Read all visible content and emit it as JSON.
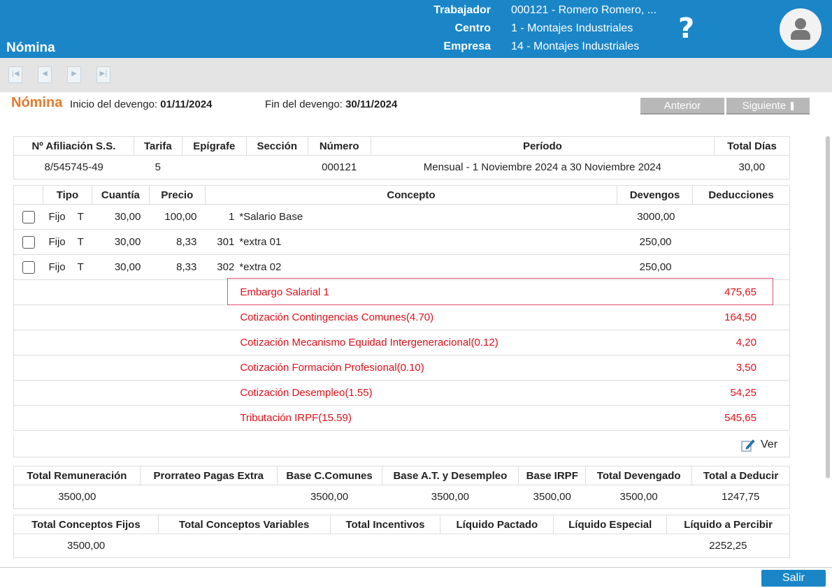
{
  "header": {
    "app_title": "Nómina",
    "trabajador_label": "Trabajador",
    "trabajador_value": "000121 - Romero Romero, ...",
    "centro_label": "Centro",
    "centro_value": "1 - Montajes Industriales",
    "empresa_label": "Empresa",
    "empresa_value": "14 - Montajes Industriales",
    "help": "?"
  },
  "toolbar": {
    "icons": [
      "first-record-icon",
      "previous-record-icon",
      "next-record-icon",
      "last-record-icon"
    ]
  },
  "page": {
    "title": "Nómina",
    "inicio_label": "Inicio del devengo:",
    "inicio_value": "01/11/2024",
    "fin_label": "Fin del devengo:",
    "fin_value": "30/11/2024",
    "anterior": "Anterior",
    "siguiente": "Siguiente"
  },
  "info_table": {
    "headers": [
      "Nº Afiliación S.S.",
      "Tarifa",
      "Epígrafe",
      "Sección",
      "Número",
      "Período",
      "Total Días"
    ],
    "row": [
      "8/545745-49",
      "5",
      "",
      "",
      "000121",
      "Mensual - 1 Noviembre 2024 a 30 Noviembre 2024",
      "30,00"
    ]
  },
  "concepts_table": {
    "headers": [
      "",
      "Tipo",
      "Cuantía",
      "Precio",
      "Concepto",
      "Devengos",
      "Deducciones"
    ],
    "rows": [
      {
        "tipo": "Fijo",
        "t": "T",
        "cuantia": "30,00",
        "precio": "100,00",
        "code": "1",
        "concepto": "*Salario Base",
        "devengos": "3000,00",
        "deducciones": ""
      },
      {
        "tipo": "Fijo",
        "t": "T",
        "cuantia": "30,00",
        "precio": "8,33",
        "code": "301",
        "concepto": "*extra 01",
        "devengos": "250,00",
        "deducciones": ""
      },
      {
        "tipo": "Fijo",
        "t": "T",
        "cuantia": "30,00",
        "precio": "8,33",
        "code": "302",
        "concepto": "*extra 02",
        "devengos": "250,00",
        "deducciones": ""
      }
    ],
    "deductions": [
      {
        "concepto": "Embargo Salarial 1",
        "deducciones": "475,65"
      },
      {
        "concepto": "Cotización Contingencias Comunes(4.70)",
        "deducciones": "164,50"
      },
      {
        "concepto": "Cotización Mecanismo Equidad Intergeneracional(0.12)",
        "deducciones": "4,20"
      },
      {
        "concepto": "Cotización Formación Profesional(0.10)",
        "deducciones": "3,50"
      },
      {
        "concepto": "Cotización Desempleo(1.55)",
        "deducciones": "54,25"
      },
      {
        "concepto": "Tributación IRPF(15.59)",
        "deducciones": "545,65"
      }
    ],
    "ver_label": "Ver"
  },
  "totals_table": {
    "headers": [
      "Total Remuneración",
      "Prorrateo Pagas Extra",
      "Base C.Comunes",
      "Base A.T. y Desempleo",
      "Base IRPF",
      "Total Devengado",
      "Total a Deducir"
    ],
    "row": [
      "3500,00",
      "",
      "3500,00",
      "3500,00",
      "3500,00",
      "3500,00",
      "1247,75"
    ]
  },
  "liquid_table": {
    "headers": [
      "Total Conceptos Fijos",
      "Total Conceptos Variables",
      "Total Incentivos",
      "Líquido Pactado",
      "Líquido Especial",
      "Líquido a Percibir"
    ],
    "row": [
      "3500,00",
      "",
      "",
      "",
      "",
      "2252,25"
    ]
  },
  "footer": {
    "salir": "Salir"
  },
  "colors": {
    "header_blue": "#1a86c8",
    "title_orange": "#e57a2a",
    "deduction_red": "#e0101a"
  }
}
